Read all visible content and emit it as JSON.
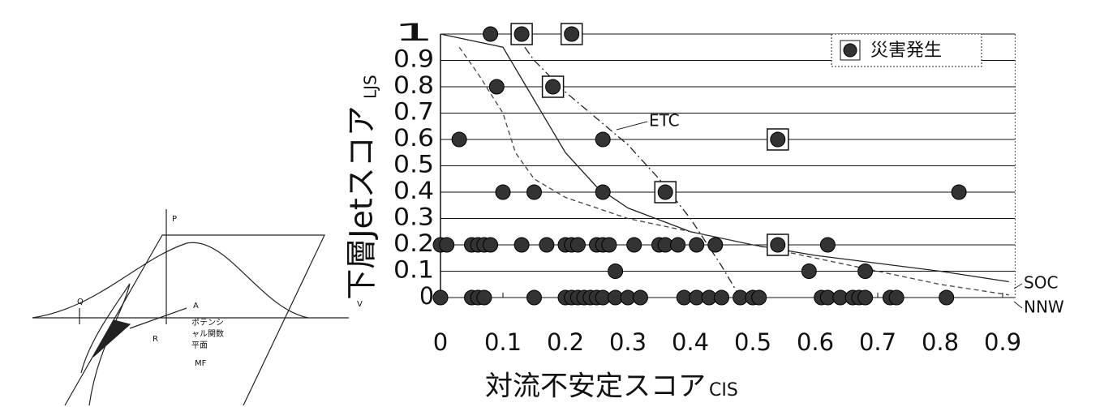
{
  "chart_data": {
    "type": "scatter",
    "x_label": "対流不安定スコア",
    "x_label_sub": "CIS",
    "y_label": "下層Jetスコア",
    "y_label_sub": "LJS",
    "xlim": [
      0,
      0.92
    ],
    "xticks": [
      0,
      0.1,
      0.2,
      0.3,
      0.4,
      0.5,
      0.6,
      0.7,
      0.8,
      0.9
    ],
    "ylim": [
      0,
      1
    ],
    "yticks": [
      0,
      0.1,
      0.2,
      0.3,
      0.4,
      0.5,
      0.6,
      0.7,
      0.8,
      0.9,
      1
    ],
    "grid": true,
    "legend": "upper-right",
    "series": [
      {
        "name": "災害発生",
        "color": "#333333",
        "x": [
          0.08,
          0.13,
          0.21,
          0.09,
          0.18,
          0.03,
          0.26,
          0.54,
          0.1,
          0.15,
          0.26,
          0.36,
          0.83,
          0,
          0.01,
          0.05,
          0.06,
          0.07,
          0.08,
          0.13,
          0.17,
          0.2,
          0.21,
          0.22,
          0.25,
          0.26,
          0.27,
          0.31,
          0.35,
          0.36,
          0.38,
          0.41,
          0.44,
          0.54,
          0.62,
          0.28,
          0.59,
          0.68,
          0,
          0.05,
          0.06,
          0.07,
          0.15,
          0.2,
          0.21,
          0.22,
          0.23,
          0.24,
          0.25,
          0.26,
          0.28,
          0.3,
          0.32,
          0.39,
          0.41,
          0.43,
          0.45,
          0.48,
          0.5,
          0.51,
          0.61,
          0.62,
          0.64,
          0.66,
          0.67,
          0.68,
          0.72,
          0.73,
          0.81
        ],
        "values": [
          1,
          1,
          1,
          0.8,
          0.8,
          0.6,
          0.6,
          0.6,
          0.4,
          0.4,
          0.4,
          0.4,
          0.4,
          0.2,
          0.2,
          0.2,
          0.2,
          0.2,
          0.2,
          0.2,
          0.2,
          0.2,
          0.2,
          0.2,
          0.2,
          0.2,
          0.2,
          0.2,
          0.2,
          0.2,
          0.2,
          0.2,
          0.2,
          0.2,
          0.2,
          0.1,
          0.1,
          0.1,
          0,
          0,
          0,
          0,
          0,
          0,
          0,
          0,
          0,
          0,
          0,
          0,
          0,
          0,
          0,
          0,
          0,
          0,
          0,
          0,
          0,
          0,
          0,
          0,
          0,
          0,
          0,
          0,
          0,
          0,
          0
        ],
        "highlighted": [
          1,
          2,
          4,
          7,
          11,
          33
        ]
      }
    ],
    "curves": [
      {
        "label": "ETC",
        "style": "dashdot",
        "color": "#222222",
        "x": [
          0.12,
          0.15,
          0.2,
          0.25,
          0.3,
          0.35,
          0.4,
          0.45,
          0.48
        ],
        "values": [
          1,
          0.9,
          0.78,
          0.68,
          0.58,
          0.45,
          0.3,
          0.12,
          0
        ]
      },
      {
        "label": "SOC",
        "style": "solid",
        "color": "#222222",
        "x": [
          0,
          0.1,
          0.15,
          0.2,
          0.25,
          0.3,
          0.4,
          0.5,
          0.6,
          0.7,
          0.8,
          0.91
        ],
        "values": [
          1,
          0.95,
          0.75,
          0.55,
          0.42,
          0.34,
          0.25,
          0.2,
          0.16,
          0.13,
          0.1,
          0.06
        ]
      },
      {
        "label": "NNW",
        "style": "dashed",
        "color": "#444444",
        "x": [
          0.03,
          0.06,
          0.1,
          0.12,
          0.15,
          0.2,
          0.3,
          0.4,
          0.5,
          0.6,
          0.7,
          0.8,
          0.91
        ],
        "values": [
          0.95,
          0.85,
          0.7,
          0.55,
          0.45,
          0.38,
          0.3,
          0.25,
          0.2,
          0.15,
          0.1,
          0.05,
          0.01
        ]
      }
    ]
  },
  "diagram": {
    "labels": [
      "P",
      "Q",
      "A",
      "R",
      "ポテンシ",
      "ャル関数",
      "平面",
      "MF",
      "V"
    ]
  }
}
